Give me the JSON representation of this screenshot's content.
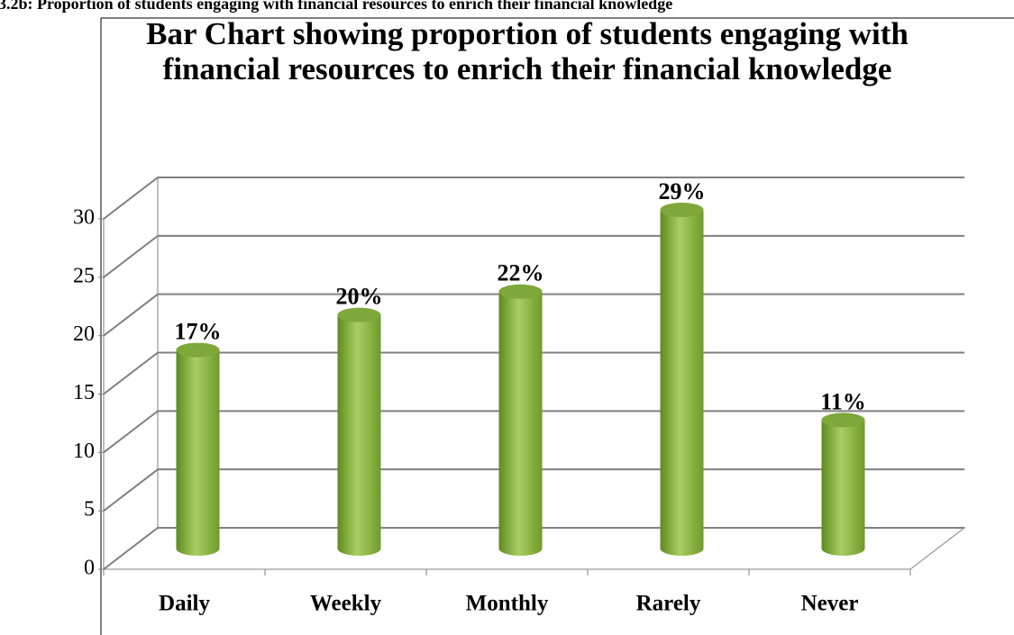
{
  "caption": "3.2b: Proportion of students engaging with financial resources to enrich their financial knowledge",
  "chart_data": {
    "type": "bar",
    "title": "Bar Chart showing proportion of students engaging with financial resources to enrich their financial knowledge",
    "categories": [
      "Daily",
      "Weekly",
      "Monthly",
      "Rarely",
      "Never"
    ],
    "values": [
      17,
      20,
      22,
      29,
      11
    ],
    "value_labels": [
      "17%",
      "20%",
      "22%",
      "29%",
      "11%"
    ],
    "color": "#8fb84a",
    "ylim": [
      0,
      30
    ],
    "yticks": [
      0,
      5,
      10,
      15,
      20,
      25,
      30
    ],
    "grid": true
  }
}
